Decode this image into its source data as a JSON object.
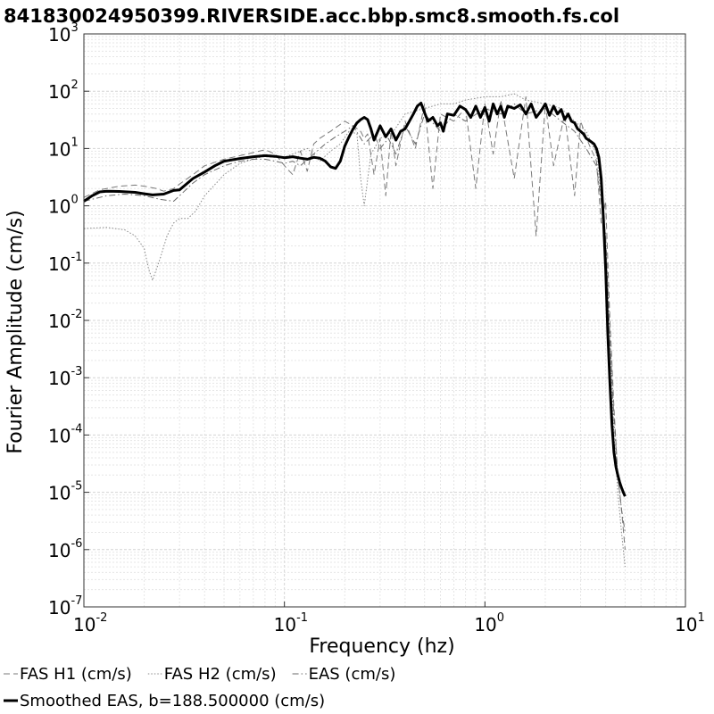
{
  "chart_data": {
    "type": "line",
    "title": "841830024950399.RIVERSIDE.acc.bbp.smc8.smooth.fs.col",
    "xlabel": "Frequency (hz)",
    "ylabel": "Fourier Amplitude (cm/s)",
    "x_scale": "log",
    "y_scale": "log",
    "xlim": [
      0.01,
      10
    ],
    "ylim": [
      1e-07,
      1000
    ],
    "grid": true,
    "legend_placement": "bottom",
    "x_ticks": [
      {
        "base": "10",
        "exp": "-2",
        "value": 0.01
      },
      {
        "base": "10",
        "exp": "-1",
        "value": 0.1
      },
      {
        "base": "10",
        "exp": "0",
        "value": 1
      },
      {
        "base": "10",
        "exp": "1",
        "value": 10
      }
    ],
    "y_ticks": [
      {
        "base": "10",
        "exp": "3",
        "value": 1000
      },
      {
        "base": "10",
        "exp": "2",
        "value": 100
      },
      {
        "base": "10",
        "exp": "1",
        "value": 10
      },
      {
        "base": "10",
        "exp": "0",
        "value": 1
      },
      {
        "base": "10",
        "exp": "-1",
        "value": 0.1
      },
      {
        "base": "10",
        "exp": "-2",
        "value": 0.01
      },
      {
        "base": "10",
        "exp": "-3",
        "value": 0.001
      },
      {
        "base": "10",
        "exp": "-4",
        "value": 0.0001
      },
      {
        "base": "10",
        "exp": "-5",
        "value": 1e-05
      },
      {
        "base": "10",
        "exp": "-6",
        "value": 1e-06
      },
      {
        "base": "10",
        "exp": "-7",
        "value": 1e-07
      }
    ],
    "series": [
      {
        "name": "FAS H1 (cm/s)",
        "style": "dashed",
        "color": "#7a7a7a",
        "x": [
          0.01,
          0.012,
          0.015,
          0.018,
          0.02,
          0.023,
          0.025,
          0.028,
          0.03,
          0.035,
          0.04,
          0.05,
          0.06,
          0.07,
          0.08,
          0.09,
          0.1,
          0.11,
          0.12,
          0.13,
          0.14,
          0.15,
          0.17,
          0.2,
          0.22,
          0.24,
          0.25,
          0.26,
          0.28,
          0.3,
          0.32,
          0.34,
          0.36,
          0.4,
          0.45,
          0.5,
          0.55,
          0.6,
          0.7,
          0.8,
          0.9,
          1.0,
          1.1,
          1.2,
          1.4,
          1.6,
          1.8,
          2.0,
          2.2,
          2.5,
          2.8,
          3.0,
          3.3,
          3.6,
          3.8,
          4.0,
          4.2,
          4.4,
          4.6,
          4.8,
          5.0
        ],
        "y": [
          1.4,
          1.9,
          2.2,
          2.3,
          2.2,
          2.0,
          1.8,
          2.0,
          2.4,
          3.5,
          5.0,
          6.5,
          7.5,
          8.5,
          9.5,
          8.0,
          5.0,
          3.5,
          9.0,
          4.0,
          12.0,
          15.0,
          20.0,
          30.0,
          25.0,
          20.0,
          15.0,
          18.0,
          3.5,
          15.0,
          1.5,
          20.0,
          5.0,
          30.0,
          10.0,
          60.0,
          2.0,
          40.0,
          30.0,
          50.0,
          2.0,
          60.0,
          8.0,
          70.0,
          3.0,
          80.0,
          0.3,
          60.0,
          5.0,
          40.0,
          1.5,
          30.0,
          12.0,
          6.0,
          0.5,
          1.2,
          0.01,
          0.0003,
          2e-05,
          5e-06,
          1e-06
        ]
      },
      {
        "name": "FAS H2 (cm/s)",
        "style": "dotted",
        "color": "#888888",
        "x": [
          0.01,
          0.013,
          0.016,
          0.018,
          0.02,
          0.021,
          0.022,
          0.024,
          0.026,
          0.028,
          0.03,
          0.033,
          0.036,
          0.04,
          0.05,
          0.06,
          0.07,
          0.08,
          0.09,
          0.1,
          0.11,
          0.12,
          0.13,
          0.14,
          0.15,
          0.17,
          0.19,
          0.21,
          0.23,
          0.24,
          0.25,
          0.27,
          0.3,
          0.35,
          0.4,
          0.5,
          0.6,
          0.7,
          0.8,
          1.0,
          1.2,
          1.4,
          1.6,
          2.0,
          2.4,
          2.8,
          3.2,
          3.6,
          4.0,
          4.2,
          4.4,
          4.6,
          4.8,
          5.0
        ],
        "y": [
          0.4,
          0.42,
          0.38,
          0.3,
          0.18,
          0.08,
          0.05,
          0.12,
          0.3,
          0.5,
          0.6,
          0.6,
          0.8,
          1.5,
          3.5,
          5.5,
          6.5,
          7.5,
          7.0,
          7.0,
          8.0,
          9.0,
          10.0,
          8.0,
          6.0,
          9.0,
          12.0,
          20.0,
          18.0,
          3.0,
          1.0,
          8.0,
          15.0,
          20.0,
          40.0,
          50.0,
          60.0,
          60.0,
          70.0,
          80.0,
          80.0,
          90.0,
          70.0,
          60.0,
          50.0,
          30.0,
          20.0,
          8.0,
          0.3,
          0.005,
          0.0001,
          1e-05,
          2e-06,
          5e-07
        ]
      },
      {
        "name": "EAS (cm/s)",
        "style": "dashdot",
        "color": "#6a6a6a",
        "x": [
          0.01,
          0.013,
          0.016,
          0.02,
          0.024,
          0.028,
          0.03,
          0.035,
          0.04,
          0.05,
          0.06,
          0.07,
          0.08,
          0.09,
          0.1,
          0.11,
          0.12,
          0.14,
          0.16,
          0.18,
          0.2,
          0.22,
          0.25,
          0.28,
          0.3,
          0.33,
          0.36,
          0.4,
          0.45,
          0.5,
          0.6,
          0.7,
          0.8,
          1.0,
          1.2,
          1.4,
          1.6,
          2.0,
          2.4,
          2.8,
          3.2,
          3.6,
          4.0,
          4.2,
          4.4,
          4.6,
          4.8,
          5.0
        ],
        "y": [
          1.2,
          1.5,
          1.6,
          1.5,
          1.3,
          1.2,
          1.5,
          2.5,
          3.5,
          5.0,
          6.0,
          6.5,
          6.5,
          6.0,
          5.5,
          6.0,
          5.0,
          8.0,
          12.0,
          16.0,
          20.0,
          25.0,
          12.0,
          18.0,
          10.0,
          15.0,
          8.0,
          25.0,
          12.0,
          40.0,
          20.0,
          40.0,
          30.0,
          50.0,
          40.0,
          60.0,
          40.0,
          50.0,
          30.0,
          20.0,
          10.0,
          5.0,
          0.3,
          0.005,
          0.0002,
          2e-05,
          5e-06,
          2e-06
        ]
      },
      {
        "name": "Smoothed EAS, b=188.500000 (cm/s)",
        "style": "solid",
        "color": "#000000",
        "x": [
          0.01,
          0.011,
          0.012,
          0.013,
          0.015,
          0.018,
          0.02,
          0.022,
          0.025,
          0.028,
          0.03,
          0.032,
          0.035,
          0.04,
          0.045,
          0.05,
          0.06,
          0.07,
          0.08,
          0.09,
          0.1,
          0.11,
          0.12,
          0.13,
          0.14,
          0.15,
          0.16,
          0.17,
          0.18,
          0.19,
          0.2,
          0.21,
          0.22,
          0.23,
          0.24,
          0.25,
          0.26,
          0.27,
          0.28,
          0.3,
          0.32,
          0.34,
          0.36,
          0.38,
          0.4,
          0.42,
          0.44,
          0.46,
          0.48,
          0.5,
          0.52,
          0.55,
          0.58,
          0.6,
          0.62,
          0.65,
          0.7,
          0.75,
          0.8,
          0.85,
          0.9,
          0.95,
          1.0,
          1.05,
          1.1,
          1.15,
          1.2,
          1.25,
          1.3,
          1.4,
          1.5,
          1.6,
          1.7,
          1.8,
          1.9,
          2.0,
          2.1,
          2.2,
          2.3,
          2.4,
          2.5,
          2.6,
          2.7,
          2.8,
          2.9,
          3.0,
          3.1,
          3.2,
          3.3,
          3.4,
          3.5,
          3.6,
          3.7,
          3.8,
          3.9,
          4.0,
          4.1,
          4.2,
          4.3,
          4.4,
          4.5,
          4.6,
          4.7,
          4.8,
          4.9,
          5.0
        ],
        "y": [
          1.2,
          1.5,
          1.75,
          1.8,
          1.78,
          1.72,
          1.62,
          1.55,
          1.6,
          1.85,
          1.9,
          2.3,
          3.0,
          3.9,
          5.0,
          6.0,
          6.7,
          7.2,
          7.5,
          7.3,
          6.9,
          7.2,
          6.8,
          6.5,
          7.0,
          6.8,
          6.0,
          4.8,
          4.5,
          6.0,
          11.0,
          16.0,
          22.0,
          28.0,
          32.0,
          35.0,
          32.0,
          22.0,
          14.0,
          25.0,
          16.0,
          22.0,
          14.0,
          20.0,
          22.0,
          30.0,
          40.0,
          55.0,
          62.0,
          42.0,
          30.0,
          35.0,
          25.0,
          28.0,
          20.0,
          40.0,
          38.0,
          55.0,
          48.0,
          35.0,
          55.0,
          35.0,
          52.0,
          30.0,
          60.0,
          40.0,
          55.0,
          35.0,
          55.0,
          50.0,
          58.0,
          40.0,
          60.0,
          35.0,
          45.0,
          60.0,
          38.0,
          55.0,
          40.0,
          48.0,
          32.0,
          40.0,
          30.0,
          28.0,
          22.0,
          20.0,
          18.0,
          15.0,
          14.0,
          13.0,
          12.0,
          10.0,
          7.0,
          3.0,
          0.6,
          0.08,
          0.006,
          0.0008,
          0.00015,
          5e-05,
          2.8e-05,
          2e-05,
          1.5e-05,
          1.2e-05,
          1e-05,
          8.5e-06
        ]
      }
    ]
  }
}
